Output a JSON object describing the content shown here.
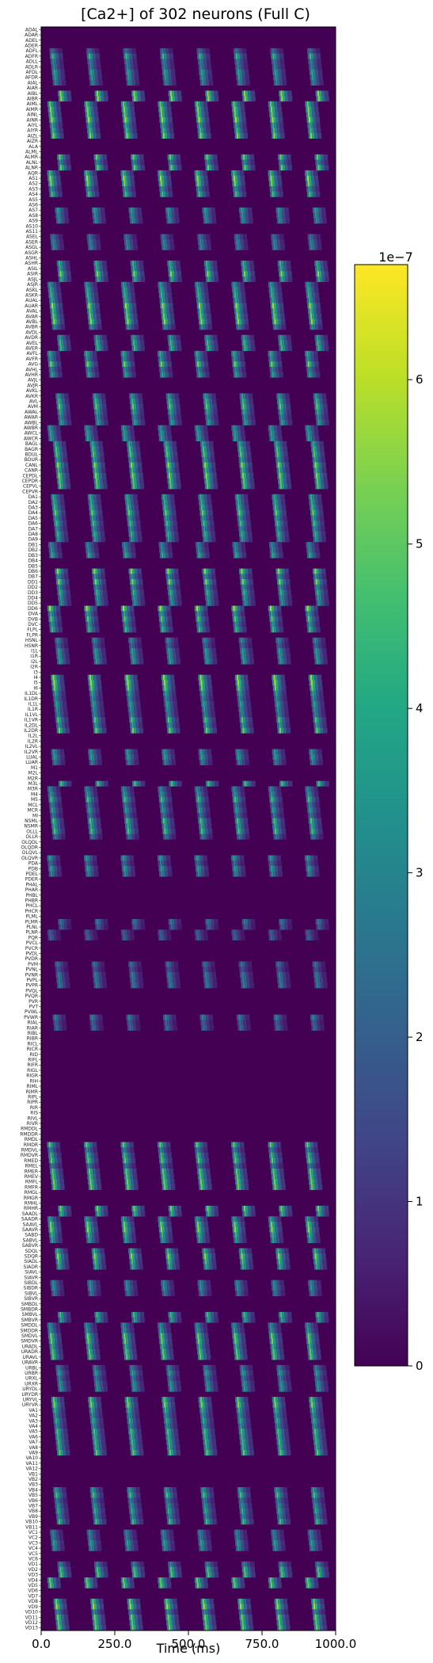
{
  "chart_data": {
    "type": "heatmap",
    "title": "[Ca2+] of 302 neurons (Full C)",
    "xlabel": "Time (ms)",
    "ylabel": "",
    "xlim": [
      0,
      1000
    ],
    "x_ticks": [
      0,
      250,
      500,
      750,
      1000
    ],
    "x_tick_labels": [
      "0.0",
      "250.0",
      "500.0",
      "750.0",
      "1000.0"
    ],
    "rows": 302,
    "colormap": "viridis",
    "vmin": 0,
    "vmax": 6.7e-07,
    "colorbar": {
      "ticks": [
        0,
        1,
        2,
        3,
        4,
        5,
        6
      ],
      "tick_labels": [
        "0",
        "1",
        "2",
        "3",
        "4",
        "5",
        "6"
      ],
      "offset_text": "1e−7"
    },
    "grid": false,
    "neuron_rows_visible_labels": [
      "ADAL",
      "ADAR",
      "ADEL",
      "ADER",
      "ADFL",
      "ADFR",
      "ADLL",
      "ADLR",
      "AFDL",
      "AFDR",
      "AIAL",
      "AIAR",
      "AIBL",
      "AIBR",
      "AIML",
      "AIMR",
      "AINL",
      "AINR",
      "AIYL",
      "AIYR",
      "AIZL",
      "AIZR",
      "ALA",
      "ALML",
      "ALMR",
      "ALNL",
      "ALNR",
      "AQR",
      "AS1",
      "AS2",
      "AS3",
      "AS4",
      "AS5",
      "AS6",
      "AS7",
      "AS8",
      "AS9",
      "AS10",
      "AS11",
      "ASEL",
      "ASER",
      "ASGL",
      "ASGR",
      "ASHL",
      "ASHR",
      "ASIL",
      "ASIR",
      "ASJL",
      "ASJR",
      "ASKL",
      "ASKR",
      "AUAL",
      "AUAR",
      "AVAL",
      "AVAR",
      "AVBL",
      "AVBR",
      "AVDL",
      "AVDR",
      "AVEL",
      "AVER",
      "AVFL",
      "AVFR",
      "AVG",
      "AVHL",
      "AVHR",
      "AVJL",
      "AVJR",
      "AVKL",
      "AVKR",
      "AVL",
      "AVM",
      "AWAL",
      "AWAR",
      "AWBL",
      "AWBR",
      "AWCL",
      "AWCR",
      "BAGL",
      "BAGR",
      "BDUL",
      "BDUR",
      "CANL",
      "CANR",
      "CEPDL",
      "CEPDR",
      "CEPVL",
      "CEPVR",
      "DA1",
      "DA2",
      "DA3",
      "DA4",
      "DA5",
      "DA6",
      "DA7",
      "DA8",
      "DA9",
      "DB1",
      "DB2",
      "DB3",
      "DB4",
      "DB5",
      "DB6",
      "DB7",
      "DD1",
      "DD2",
      "DD3",
      "DD4",
      "DD5",
      "DD6",
      "DVA",
      "DVB",
      "DVC",
      "FLPL",
      "FLPR",
      "HSNL",
      "HSNR",
      "I1L",
      "I1R",
      "I2L",
      "I2R",
      "I3",
      "I4",
      "I5",
      "I6",
      "IL1DL",
      "IL1DR",
      "IL1L",
      "IL1R",
      "IL1VL",
      "IL1VR",
      "IL2DL",
      "IL2DR",
      "IL2L",
      "IL2R",
      "IL2VL",
      "IL2VR",
      "LUAL",
      "LUAR",
      "M1",
      "M2L",
      "M2R",
      "M3L",
      "M3R",
      "M4",
      "M5",
      "MCL",
      "MCR",
      "MI",
      "NSML",
      "NSMR",
      "OLLL",
      "OLLR",
      "OLQDL",
      "OLQDR",
      "OLQVL",
      "OLQVR",
      "PDA",
      "PDB",
      "PDEL",
      "PDER",
      "PHAL",
      "PHAR",
      "PHBL",
      "PHBR",
      "PHCL",
      "PHCR",
      "PLML",
      "PLMR",
      "PLNL",
      "PLNR",
      "PQR",
      "PVCL",
      "PVCR",
      "PVDL",
      "PVDR",
      "PVM",
      "PVNL",
      "PVNR",
      "PVPL",
      "PVPR",
      "PVQL",
      "PVQR",
      "PVR",
      "PVT",
      "PVWL",
      "PVWR",
      "RIAL",
      "RIAR",
      "RIBL",
      "RIBR",
      "RICL",
      "RICR",
      "RID",
      "RIFL",
      "RIFR",
      "RIGL",
      "RIGR",
      "RIH",
      "RIML",
      "RIMR",
      "RIPL",
      "RIPR",
      "RIR",
      "RIS",
      "RIVL",
      "RIVR",
      "RMDDL",
      "RMDDR",
      "RMDL",
      "RMDR",
      "RMDVL",
      "RMDVR",
      "RMED",
      "RMEL",
      "RMER",
      "RMEV",
      "RMFL",
      "RMFR",
      "RMGL",
      "RMGR",
      "RMHL",
      "RMHR",
      "SAADL",
      "SAADR",
      "SAAVL",
      "SAAVR",
      "SABD",
      "SABVL",
      "SABVR",
      "SDQL",
      "SDQR",
      "SIADL",
      "SIADR",
      "SIAVL",
      "SIAVR",
      "SIBDL",
      "SIBDR",
      "SIBVL",
      "SIBVR",
      "SMBDL",
      "SMBDR",
      "SMBVL",
      "SMBVR",
      "SMDDL",
      "SMDDR",
      "SMDVL",
      "SMDVR",
      "URADL",
      "URADR",
      "URAVL",
      "URAVR",
      "URBL",
      "URBR",
      "URXL",
      "URXR",
      "URYDL",
      "URYDR",
      "URYVL",
      "URYVR",
      "VA1",
      "VA2",
      "VA3",
      "VA4",
      "VA5",
      "VA6",
      "VA7",
      "VA8",
      "VA9",
      "VA10",
      "VA11",
      "VA12",
      "VB1",
      "VB2",
      "VB3",
      "VB4",
      "VB5",
      "VB6",
      "VB7",
      "VB8",
      "VB9",
      "VB10",
      "VB11",
      "VC1",
      "VC2",
      "VC3",
      "VC4",
      "VC5",
      "VC6",
      "VD1",
      "VD2",
      "VD3",
      "VD4",
      "VD5",
      "VD6",
      "VD7",
      "VD8",
      "VD9",
      "VD10",
      "VD11",
      "VD12",
      "VD13"
    ],
    "active_row_bands": [
      {
        "from": 4,
        "to": 10,
        "peak": 0.7
      },
      {
        "from": 12,
        "to": 20,
        "peak": 0.95
      },
      {
        "from": 24,
        "to": 31,
        "peak": 0.9
      },
      {
        "from": 34,
        "to": 36,
        "peak": 0.6
      },
      {
        "from": 39,
        "to": 41,
        "peak": 0.5
      },
      {
        "from": 44,
        "to": 56,
        "peak": 0.9
      },
      {
        "from": 58,
        "to": 65,
        "peak": 0.85
      },
      {
        "from": 69,
        "to": 77,
        "peak": 0.8
      },
      {
        "from": 78,
        "to": 86,
        "peak": 0.9
      },
      {
        "from": 88,
        "to": 96,
        "peak": 0.8
      },
      {
        "from": 97,
        "to": 99,
        "peak": 0.7
      },
      {
        "from": 102,
        "to": 113,
        "peak": 0.9
      },
      {
        "from": 115,
        "to": 119,
        "peak": 0.6
      },
      {
        "from": 122,
        "to": 132,
        "peak": 0.9
      },
      {
        "from": 136,
        "to": 138,
        "peak": 0.7
      },
      {
        "from": 142,
        "to": 152,
        "peak": 0.75
      },
      {
        "from": 156,
        "to": 159,
        "peak": 0.6
      },
      {
        "from": 168,
        "to": 171,
        "peak": 0.5
      },
      {
        "from": 176,
        "to": 180,
        "peak": 0.5
      },
      {
        "from": 186,
        "to": 188,
        "peak": 0.6
      },
      {
        "from": 210,
        "to": 218,
        "peak": 0.8
      },
      {
        "from": 222,
        "to": 228,
        "peak": 0.9
      },
      {
        "from": 230,
        "to": 233,
        "peak": 0.9
      },
      {
        "from": 236,
        "to": 238,
        "peak": 0.6
      },
      {
        "from": 242,
        "to": 250,
        "peak": 0.8
      },
      {
        "from": 252,
        "to": 256,
        "peak": 0.7
      },
      {
        "from": 258,
        "to": 268,
        "peak": 0.85
      },
      {
        "from": 275,
        "to": 281,
        "peak": 0.8
      },
      {
        "from": 283,
        "to": 286,
        "peak": 0.7
      },
      {
        "from": 289,
        "to": 293,
        "peak": 0.8
      },
      {
        "from": 296,
        "to": 301,
        "peak": 0.9
      }
    ],
    "oscillation_period_ms": 125
  }
}
